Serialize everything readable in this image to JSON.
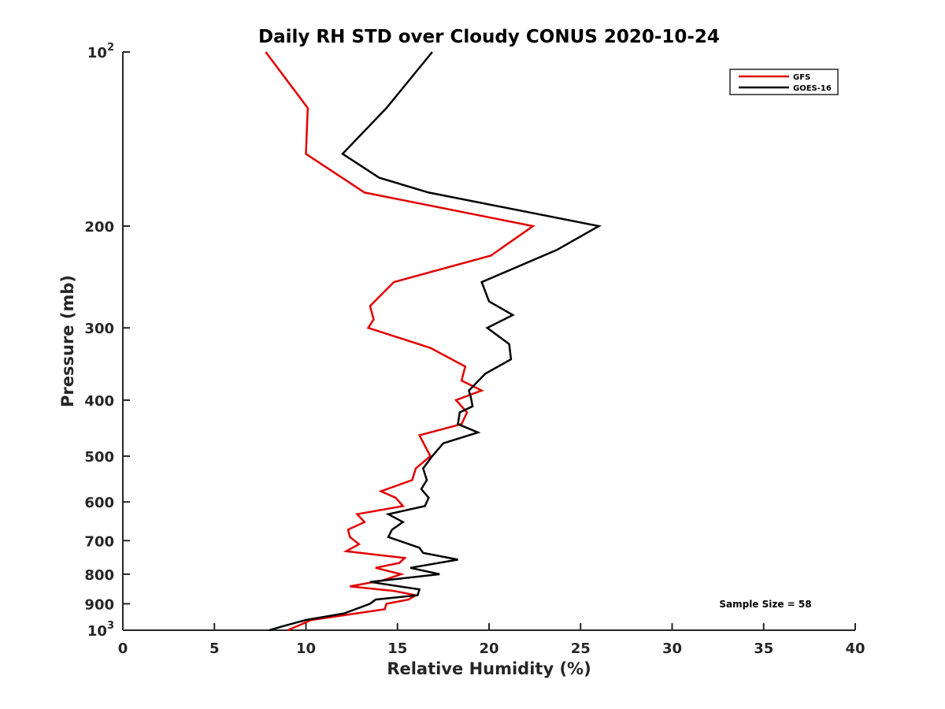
{
  "chart_data": {
    "type": "line",
    "title": "Daily RH STD over Cloudy CONUS 2020-10-24",
    "xlabel": "Relative Humidity (%)",
    "ylabel": "Pressure (mb)",
    "xlim": [
      0,
      40
    ],
    "ylim": [
      100,
      1000
    ],
    "y_scale": "log",
    "y_reversed": true,
    "grid": false,
    "legend_position": "top-right",
    "x_ticks": [
      0,
      5,
      10,
      15,
      20,
      25,
      30,
      35,
      40
    ],
    "x_tick_labels": [
      "0",
      "5",
      "10",
      "15",
      "20",
      "25",
      "30",
      "35",
      "40"
    ],
    "y_ticks": [
      100,
      200,
      300,
      400,
      500,
      600,
      700,
      800,
      900,
      1000
    ],
    "y_tick_labels": [
      {
        "base": "10",
        "exp": "2"
      },
      {
        "base": "200",
        "exp": ""
      },
      {
        "base": "300",
        "exp": ""
      },
      {
        "base": "400",
        "exp": ""
      },
      {
        "base": "500",
        "exp": ""
      },
      {
        "base": "600",
        "exp": ""
      },
      {
        "base": "700",
        "exp": ""
      },
      {
        "base": "800",
        "exp": ""
      },
      {
        "base": "900",
        "exp": ""
      },
      {
        "base": "10",
        "exp": "3"
      }
    ],
    "series": [
      {
        "name": "GFS",
        "color": "#e00000",
        "points": [
          [
            7.8,
            100
          ],
          [
            10.1,
            125
          ],
          [
            10.0,
            150
          ],
          [
            13.2,
            175
          ],
          [
            22.4,
            200
          ],
          [
            20.1,
            225
          ],
          [
            14.8,
            250
          ],
          [
            13.5,
            275
          ],
          [
            13.7,
            290
          ],
          [
            13.4,
            300
          ],
          [
            16.8,
            325
          ],
          [
            18.7,
            350
          ],
          [
            18.5,
            370
          ],
          [
            19.6,
            385
          ],
          [
            18.2,
            400
          ],
          [
            18.8,
            420
          ],
          [
            18.5,
            440
          ],
          [
            16.2,
            460
          ],
          [
            16.5,
            480
          ],
          [
            16.8,
            500
          ],
          [
            16.0,
            525
          ],
          [
            15.8,
            550
          ],
          [
            14.1,
            575
          ],
          [
            14.9,
            590
          ],
          [
            15.3,
            610
          ],
          [
            12.8,
            630
          ],
          [
            13.2,
            650
          ],
          [
            12.3,
            670
          ],
          [
            12.4,
            690
          ],
          [
            12.9,
            710
          ],
          [
            12.2,
            730
          ],
          [
            15.4,
            750
          ],
          [
            15.1,
            765
          ],
          [
            13.8,
            780
          ],
          [
            15.2,
            800
          ],
          [
            14.2,
            820
          ],
          [
            12.4,
            840
          ],
          [
            14.8,
            855
          ],
          [
            16.0,
            870
          ],
          [
            15.6,
            885
          ],
          [
            14.4,
            900
          ],
          [
            14.3,
            920
          ],
          [
            10.3,
            960
          ],
          [
            9.0,
            1000
          ]
        ]
      },
      {
        "name": "GOES-16",
        "color": "#000000",
        "points": [
          [
            16.9,
            100
          ],
          [
            14.4,
            125
          ],
          [
            12.0,
            150
          ],
          [
            14.0,
            165
          ],
          [
            16.7,
            175
          ],
          [
            26.0,
            200
          ],
          [
            23.7,
            220
          ],
          [
            19.6,
            250
          ],
          [
            20.0,
            270
          ],
          [
            21.3,
            285
          ],
          [
            19.9,
            300
          ],
          [
            21.1,
            320
          ],
          [
            21.2,
            340
          ],
          [
            19.8,
            360
          ],
          [
            18.9,
            385
          ],
          [
            19.0,
            395
          ],
          [
            19.1,
            410
          ],
          [
            18.4,
            420
          ],
          [
            18.3,
            440
          ],
          [
            19.4,
            455
          ],
          [
            17.5,
            475
          ],
          [
            16.9,
            500
          ],
          [
            16.4,
            525
          ],
          [
            16.6,
            550
          ],
          [
            16.3,
            570
          ],
          [
            16.7,
            590
          ],
          [
            16.5,
            610
          ],
          [
            14.5,
            630
          ],
          [
            15.3,
            650
          ],
          [
            14.7,
            670
          ],
          [
            14.5,
            690
          ],
          [
            16.2,
            720
          ],
          [
            16.4,
            735
          ],
          [
            18.3,
            755
          ],
          [
            15.7,
            780
          ],
          [
            17.3,
            800
          ],
          [
            13.5,
            825
          ],
          [
            16.2,
            850
          ],
          [
            16.1,
            870
          ],
          [
            13.8,
            885
          ],
          [
            13.5,
            900
          ],
          [
            12.1,
            935
          ],
          [
            10.0,
            960
          ],
          [
            8.7,
            985
          ],
          [
            8.0,
            1000
          ]
        ]
      }
    ],
    "annotation": "Sample Size = 58"
  }
}
